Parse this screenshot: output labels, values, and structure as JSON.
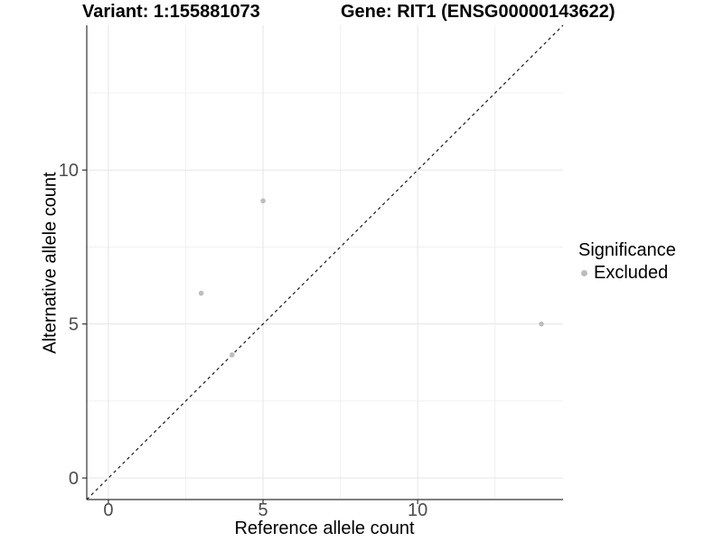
{
  "header": {
    "variant_title": "Variant: 1:155881073",
    "gene_title": "Gene: RIT1 (ENSG00000143622)"
  },
  "chart_data": {
    "type": "scatter",
    "title": "Variant: 1:155881073 / Gene: RIT1 (ENSG00000143622)",
    "xlabel": "Reference allele count",
    "ylabel": "Alternative allele count",
    "xlim": [
      -0.7,
      14.7
    ],
    "ylim": [
      -0.7,
      14.7
    ],
    "x_ticks": [
      0,
      5,
      10
    ],
    "y_ticks": [
      0,
      5,
      10
    ],
    "x_minor_ticks": [
      2.5,
      7.5,
      12.5
    ],
    "y_minor_ticks": [
      2.5,
      7.5,
      12.5
    ],
    "grid": true,
    "identity_line": {
      "slope": 1,
      "intercept": 0,
      "style": "dashed",
      "color": "#1a1a1a"
    },
    "series": [
      {
        "name": "Excluded",
        "color": "#bdbdbd",
        "points": [
          {
            "x": 3,
            "y": 6
          },
          {
            "x": 4,
            "y": 4
          },
          {
            "x": 5,
            "y": 9
          },
          {
            "x": 14,
            "y": 5
          }
        ]
      }
    ],
    "legend": {
      "title": "Significance",
      "position": "right",
      "entries": [
        {
          "label": "Excluded",
          "color": "#bdbdbd"
        }
      ]
    }
  },
  "colors": {
    "background": "#ffffff",
    "grid_major": "#e5e5e5",
    "grid_minor": "#f0f0f0",
    "axis_line": "#333333",
    "tick_label": "#4d4d4d",
    "title_text": "#000000",
    "point": "#bdbdbd",
    "identity_line": "#1a1a1a"
  }
}
